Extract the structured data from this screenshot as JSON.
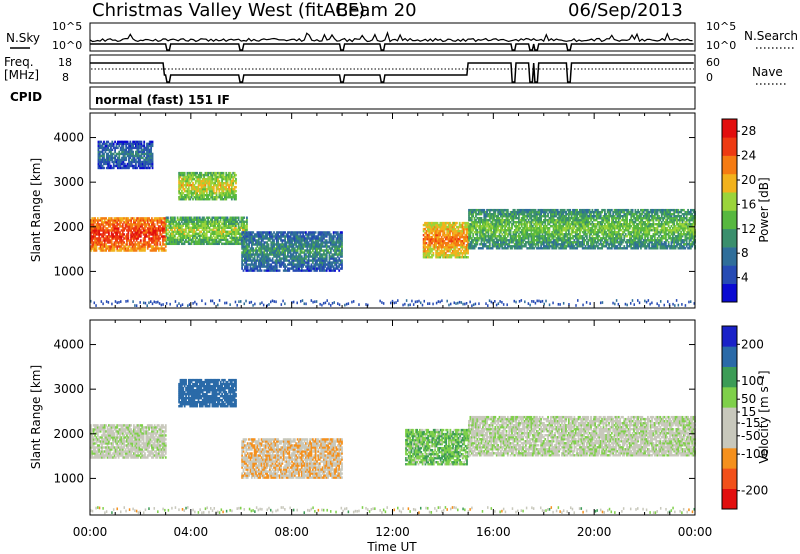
{
  "header": {
    "title": "Christmas Valley West (fitACF)",
    "beam": "Beam 20",
    "date": "06/Sep/2013"
  },
  "summary_labels": {
    "nsky": "N.Sky",
    "nsearch": "N.Search",
    "freq_line1": "Freq.",
    "freq_line2": "[MHz]",
    "nave": "Nave",
    "cpid": "CPID",
    "cpid_value": "normal (fast) 151 IF",
    "nsky_ticks": [
      "10^5",
      "10^0"
    ],
    "nsearch_ticks": [
      "10^5",
      "10^0"
    ],
    "freq_ticks": [
      "18",
      "8"
    ],
    "nave_ticks": [
      "60",
      "0"
    ]
  },
  "chart_data": [
    {
      "type": "heatmap",
      "panel": "power",
      "xlabel": "",
      "ylabel": "Slant Range [km]",
      "xlim": [
        0,
        24
      ],
      "ylim": [
        180,
        4550
      ],
      "y_ticks": [
        1000,
        2000,
        3000,
        4000
      ],
      "colorbar_label": "Power [dB]",
      "colorbar_ticks": [
        4,
        8,
        12,
        16,
        20,
        24,
        28
      ],
      "colorbar_range": [
        0,
        30
      ],
      "colors": [
        "#0a0ad2",
        "#264bb4",
        "#2f6e9a",
        "#3a8f6d",
        "#57b83f",
        "#9bd43a",
        "#f2b21c",
        "#f57b12",
        "#ee3a12",
        "#e20e0e"
      ],
      "echo_bands": [
        {
          "t": [
            0.0,
            3.0
          ],
          "range": [
            1450,
            2200
          ],
          "power": 24
        },
        {
          "t": [
            3.0,
            6.2
          ],
          "range": [
            1600,
            2200
          ],
          "power": 14
        },
        {
          "t": [
            3.5,
            5.8
          ],
          "range": [
            2600,
            3200
          ],
          "power": 16
        },
        {
          "t": [
            6.0,
            10.0
          ],
          "range": [
            1000,
            1900
          ],
          "power": 8
        },
        {
          "t": [
            13.2,
            15.0
          ],
          "range": [
            1300,
            2100
          ],
          "power": 20
        },
        {
          "t": [
            15.0,
            24.0
          ],
          "range": [
            1500,
            2400
          ],
          "power": 12
        },
        {
          "t": [
            0.3,
            2.5
          ],
          "range": [
            3300,
            3900
          ],
          "power": 6
        }
      ]
    },
    {
      "type": "heatmap",
      "panel": "velocity",
      "xlabel": "Time UT",
      "ylabel": "Slant Range [km]",
      "xlim": [
        0,
        24
      ],
      "ylim": [
        180,
        4550
      ],
      "x_ticks": [
        "00:00",
        "04:00",
        "08:00",
        "12:00",
        "16:00",
        "20:00",
        "00:00"
      ],
      "y_ticks": [
        1000,
        2000,
        3000,
        4000
      ],
      "colorbar_label": "Velocity [m s⁻¹]",
      "colorbar_ticks": [
        -200,
        -100,
        -50,
        -15,
        15,
        50,
        100,
        200
      ],
      "colorbar_range": [
        -250,
        250
      ],
      "colors": [
        "#e20e0e",
        "#f2501a",
        "#f5901c",
        "#c8c8bc",
        "#c8c8bc",
        "#7fd04a",
        "#3c9c56",
        "#2a6aa8",
        "#1a22c8"
      ],
      "echo_bands": [
        {
          "t": [
            0.0,
            3.0
          ],
          "range": [
            1450,
            2200
          ],
          "velocity": 0
        },
        {
          "t": [
            3.5,
            5.8
          ],
          "range": [
            2600,
            3200
          ],
          "velocity": 150
        },
        {
          "t": [
            6.0,
            10.0
          ],
          "range": [
            1000,
            1900
          ],
          "velocity": -40
        },
        {
          "t": [
            12.5,
            15.0
          ],
          "range": [
            1300,
            2100
          ],
          "velocity": 40
        },
        {
          "t": [
            15.0,
            24.0
          ],
          "range": [
            1500,
            2400
          ],
          "velocity": 0
        }
      ]
    }
  ]
}
